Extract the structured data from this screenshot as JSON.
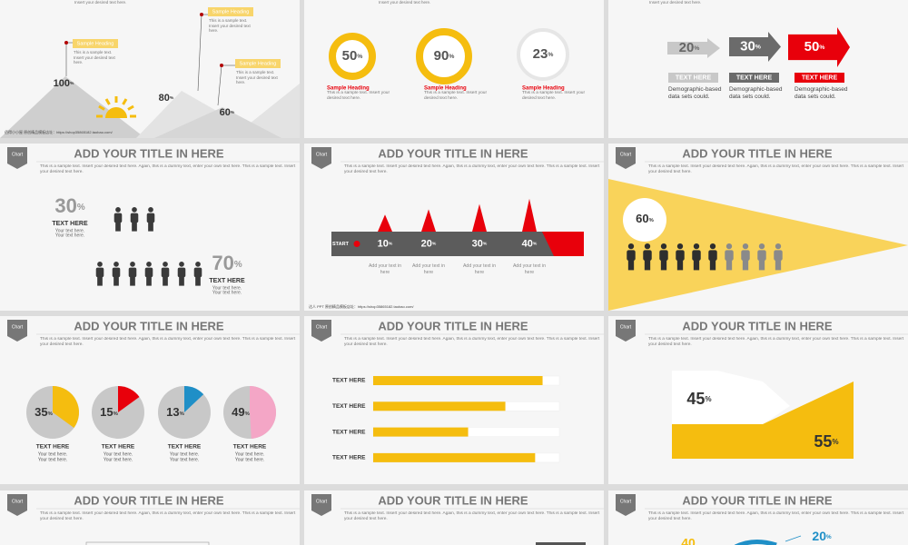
{
  "slide_1": {
    "top_text": "Insert your desired text here.",
    "items": [
      {
        "heading": "Sample Heading",
        "text": "This is a sample text. Insert your desired text here.",
        "value": 100,
        "unit": "%"
      },
      {
        "heading": "Sample Heading",
        "text": "This is a sample text. Insert your desired text here.",
        "value": 80,
        "unit": "%"
      },
      {
        "heading": "Sample Heading",
        "text": "This is a sample text. Insert your desired text here.",
        "value": 60,
        "unit": "%"
      }
    ],
    "footer": "佰得小小屋 原创精品模板店址：https://shop35865182.taobao.com/"
  },
  "slide_2": {
    "top_text": "Insert your desired text here.",
    "rings": [
      {
        "value": 50,
        "unit": "%",
        "color": "#f5bd0f",
        "heading": "Sample Heading",
        "text": "This is a sample text. Insert your desired text here."
      },
      {
        "value": 90,
        "unit": "%",
        "color": "#f5bd0f",
        "heading": "Sample Heading",
        "text": "This is a sample text. Insert your desired text here."
      },
      {
        "value": 23,
        "unit": "%",
        "color": "#e6e6e6",
        "heading": "Sample Heading",
        "text": "This is a sample text. Insert your desired text here."
      }
    ]
  },
  "slide_3": {
    "top_text": "Insert your desired text here.",
    "arrows": [
      {
        "value": 20,
        "unit": "%",
        "color": "#c8c8c8",
        "label": "TEXT HERE",
        "text": "Demographic-based data sets could."
      },
      {
        "value": 30,
        "unit": "%",
        "color": "#6b6b6b",
        "label": "TEXT HERE",
        "text": "Demographic-based data sets could."
      },
      {
        "value": 50,
        "unit": "%",
        "color": "#e8000b",
        "label": "TEXT HERE",
        "text": "Demographic-based data sets could."
      }
    ]
  },
  "slide_4": {
    "header": {
      "tag": "Chart",
      "title": "ADD YOUR TITLE IN HERE",
      "body": "This is a sample text. Insert your desired text here. Again, this is a dummy text, enter your own text here. This is a sample text. Insert your desired text here."
    },
    "groups": [
      {
        "value": 30,
        "unit": "%",
        "label": "TEXT HERE",
        "lines": [
          "Your text here.",
          "Your text here."
        ]
      },
      {
        "value": 70,
        "unit": "%",
        "label": "TEXT HERE",
        "lines": [
          "Your text here.",
          "Your text here."
        ]
      }
    ]
  },
  "slide_5": {
    "header": {
      "tag": "Chart",
      "title": "ADD YOUR TITLE IN HERE",
      "body": "This is a sample text. Insert your desired text here. Again, this is a dummy text, enter your own text here. This is a sample text. Insert your desired text here."
    },
    "start": "START",
    "steps": [
      {
        "value": 10,
        "unit": "%",
        "text": "Add your text in here"
      },
      {
        "value": 20,
        "unit": "%",
        "text": "Add your text in here"
      },
      {
        "value": 30,
        "unit": "%",
        "text": "Add your text in here"
      },
      {
        "value": 40,
        "unit": "%",
        "text": "Add your text in here"
      }
    ],
    "footer": "达人 PPT 原创精品模板店址：https://shop35865182.taobao.com/"
  },
  "slide_6": {
    "header": {
      "tag": "Chart",
      "title": "ADD YOUR TITLE IN HERE",
      "body": "This is a sample text. Insert your desired text here. Again, this is a dummy text, enter your own text here. This is a sample text. Insert your desired text here."
    },
    "value": 60,
    "unit": "%"
  },
  "slide_7": {
    "header": {
      "tag": "Chart",
      "title": "ADD YOUR TITLE IN HERE",
      "body": "This is a sample text. Insert your desired text here. Again, this is a dummy text, enter your own text here. This is a sample text. Insert your desired text here."
    },
    "pies": [
      {
        "value": 35,
        "unit": "%",
        "color": "#f5bd0f",
        "label": "TEXT HERE",
        "lines": [
          "Your text here.",
          "Your text here."
        ]
      },
      {
        "value": 15,
        "unit": "%",
        "color": "#e8000b",
        "label": "TEXT HERE",
        "lines": [
          "Your text here.",
          "Your text here."
        ]
      },
      {
        "value": 13,
        "unit": "%",
        "color": "#1f8fc7",
        "label": "TEXT HERE",
        "lines": [
          "Your text here.",
          "Your text here."
        ]
      },
      {
        "value": 49,
        "unit": "%",
        "color": "#f4a6c6",
        "label": "TEXT HERE",
        "lines": [
          "Your text here.",
          "Your text here."
        ]
      }
    ]
  },
  "slide_8": {
    "header": {
      "tag": "Chart",
      "title": "ADD YOUR TITLE IN HERE",
      "body": "This is a sample text. Insert your desired text here. Again, this is a dummy text, enter your own text here. This is a sample text. Insert your desired text here."
    },
    "xlim": [
      0,
      100
    ],
    "color": "#f5bd0f",
    "bars": [
      {
        "label": "TEXT HERE",
        "value": 91
      },
      {
        "label": "TEXT HERE",
        "value": 71
      },
      {
        "label": "TEXT HERE",
        "value": 51
      },
      {
        "label": "TEXT HERE",
        "value": 87
      }
    ]
  },
  "slide_9": {
    "header": {
      "tag": "Chart",
      "title": "ADD YOUR TITLE IN HERE",
      "body": "This is a sample text. Insert your desired text here. Again, this is a dummy text, enter your own text here. This is a sample text. Insert your desired text here."
    },
    "left": {
      "value": 45,
      "unit": "%"
    },
    "right": {
      "value": 55,
      "unit": "%"
    }
  },
  "slide_10": {
    "header": {
      "tag": "Chart",
      "title": "ADD YOUR TITLE IN HERE",
      "body": "This is a sample text. Insert your desired text here. Again, this is a dummy text, enter your own text here. This is a sample text. Insert your desired text here."
    }
  },
  "slide_11": {
    "header": {
      "tag": "Chart",
      "title": "ADD YOUR TITLE IN HERE",
      "body": "This is a sample text. Insert your desired text here. Again, this is a dummy text, enter your own text here. This is a sample text. Insert your desired text here."
    }
  },
  "slide_12": {
    "header": {
      "tag": "Chart",
      "title": "ADD YOUR TITLE IN HERE",
      "body": "This is a sample text. Insert your desired text here. Again, this is a dummy text, enter your own text here. This is a sample text. Insert your desired text here."
    },
    "left_value": 40,
    "right": {
      "value": 20,
      "unit": "%"
    }
  }
}
